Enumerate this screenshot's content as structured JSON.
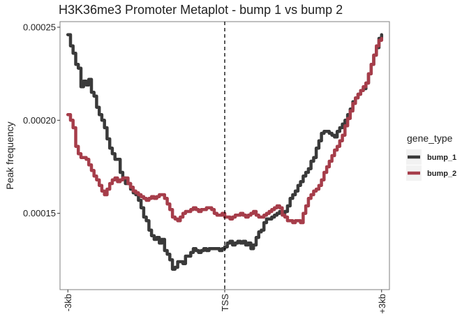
{
  "chart_data": {
    "type": "line",
    "title": "H3K36me3 Promoter Metaplot - bump 1 vs bump 2",
    "xlabel": "",
    "ylabel": "Peak frequency",
    "x_ticks": [
      {
        "x": -3000,
        "label": "-3kb"
      },
      {
        "x": 0,
        "label": "TSS"
      },
      {
        "x": 3000,
        "label": "+3kb"
      }
    ],
    "y_ticks": [
      {
        "y": 0.00015,
        "label": "0.00015"
      },
      {
        "y": 0.0002,
        "label": "0.00020"
      },
      {
        "y": 0.00025,
        "label": "0.00025"
      }
    ],
    "xlim": [
      -3150,
      3150
    ],
    "ylim": [
      0.000109,
      0.000253
    ],
    "vline": {
      "x": 0,
      "style": "dashed"
    },
    "grid": false,
    "legend": {
      "title": "gene_type",
      "position": "right"
    },
    "series": [
      {
        "name": "bump_1",
        "color": "#3a3a3a",
        "x": [
          -3000,
          -2950,
          -2900,
          -2850,
          -2800,
          -2750,
          -2700,
          -2650,
          -2600,
          -2550,
          -2500,
          -2450,
          -2400,
          -2350,
          -2300,
          -2250,
          -2200,
          -2150,
          -2100,
          -2050,
          -2000,
          -1950,
          -1900,
          -1850,
          -1800,
          -1750,
          -1700,
          -1650,
          -1600,
          -1550,
          -1500,
          -1450,
          -1400,
          -1350,
          -1300,
          -1250,
          -1200,
          -1150,
          -1100,
          -1050,
          -1000,
          -950,
          -900,
          -850,
          -800,
          -750,
          -700,
          -650,
          -600,
          -550,
          -500,
          -450,
          -400,
          -350,
          -300,
          -250,
          -200,
          -150,
          -100,
          -50,
          0,
          50,
          100,
          150,
          200,
          250,
          300,
          350,
          400,
          450,
          500,
          550,
          600,
          650,
          700,
          750,
          800,
          850,
          900,
          950,
          1000,
          1050,
          1100,
          1150,
          1200,
          1250,
          1300,
          1350,
          1400,
          1450,
          1500,
          1550,
          1600,
          1650,
          1700,
          1750,
          1800,
          1850,
          1900,
          1950,
          2000,
          2050,
          2100,
          2150,
          2200,
          2250,
          2300,
          2350,
          2400,
          2450,
          2500,
          2550,
          2600,
          2650,
          2700,
          2750,
          2800,
          2850,
          2900,
          2950,
          3000
        ],
        "values": [
          0.000246,
          0.00024,
          0.000236,
          0.00023,
          0.000228,
          0.000218,
          0.000221,
          0.000219,
          0.000222,
          0.000215,
          0.000213,
          0.000207,
          0.000203,
          0.0002,
          0.000196,
          0.00019,
          0.000185,
          0.000182,
          0.000179,
          0.000179,
          0.000172,
          0.000169,
          0.000166,
          0.000166,
          0.000163,
          0.000161,
          0.00016,
          0.000157,
          0.000153,
          0.000148,
          0.000146,
          0.000141,
          0.000138,
          0.000136,
          0.000137,
          0.000134,
          0.000136,
          0.00013,
          0.000128,
          0.000125,
          0.00012,
          0.000121,
          0.000124,
          0.000124,
          0.000123,
          0.000127,
          0.000127,
          0.000129,
          0.000131,
          0.00013,
          0.000129,
          0.00013,
          0.000131,
          0.00013,
          0.000131,
          0.000131,
          0.000131,
          0.000131,
          0.00013,
          0.000131,
          0.000132,
          0.000134,
          0.000135,
          0.000133,
          0.000134,
          0.000135,
          0.000134,
          0.000135,
          0.000133,
          0.000134,
          0.000131,
          0.000133,
          0.000137,
          0.00014,
          0.000141,
          0.000145,
          0.000147,
          0.000147,
          0.000148,
          0.000149,
          0.00015,
          0.000151,
          0.00015,
          0.000151,
          0.000154,
          0.000158,
          0.00016,
          0.000162,
          0.000165,
          0.000167,
          0.00017,
          0.000172,
          0.000174,
          0.000178,
          0.00018,
          0.000185,
          0.000189,
          0.000193,
          0.000194,
          0.000194,
          0.000193,
          0.000192,
          0.000191,
          0.000194,
          0.000196,
          0.000198,
          0.0002,
          0.000203,
          0.000206,
          0.00021,
          0.000212,
          0.000214,
          0.000216,
          0.000217,
          0.00022,
          0.000225,
          0.00023,
          0.000235,
          0.000239,
          0.000244,
          0.000246
        ]
      },
      {
        "name": "bump_2",
        "color": "#a63d4a",
        "x": [
          -3000,
          -2950,
          -2900,
          -2850,
          -2800,
          -2750,
          -2700,
          -2650,
          -2600,
          -2550,
          -2500,
          -2450,
          -2400,
          -2350,
          -2300,
          -2250,
          -2200,
          -2150,
          -2100,
          -2050,
          -2000,
          -1950,
          -1900,
          -1850,
          -1800,
          -1750,
          -1700,
          -1650,
          -1600,
          -1550,
          -1500,
          -1450,
          -1400,
          -1350,
          -1300,
          -1250,
          -1200,
          -1150,
          -1100,
          -1050,
          -1000,
          -950,
          -900,
          -850,
          -800,
          -750,
          -700,
          -650,
          -600,
          -550,
          -500,
          -450,
          -400,
          -350,
          -300,
          -250,
          -200,
          -150,
          -100,
          -50,
          0,
          50,
          100,
          150,
          200,
          250,
          300,
          350,
          400,
          450,
          500,
          550,
          600,
          650,
          700,
          750,
          800,
          850,
          900,
          950,
          1000,
          1050,
          1100,
          1150,
          1200,
          1250,
          1300,
          1350,
          1400,
          1450,
          1500,
          1550,
          1600,
          1650,
          1700,
          1750,
          1800,
          1850,
          1900,
          1950,
          2000,
          2050,
          2100,
          2150,
          2200,
          2250,
          2300,
          2350,
          2400,
          2450,
          2500,
          2550,
          2600,
          2650,
          2700,
          2750,
          2800,
          2850,
          2900,
          2950,
          3000
        ],
        "values": [
          0.000203,
          0.0002,
          0.000196,
          0.000186,
          0.000182,
          0.00018,
          0.00018,
          0.000179,
          0.000176,
          0.000173,
          0.00017,
          0.000168,
          0.000165,
          0.000162,
          0.00016,
          0.000163,
          0.000166,
          0.000168,
          0.000169,
          0.000167,
          0.000168,
          0.000169,
          0.000169,
          0.000166,
          0.000164,
          0.000162,
          0.000161,
          0.00016,
          0.000159,
          0.000158,
          0.000157,
          0.000158,
          0.000159,
          0.000158,
          0.000159,
          0.00016,
          0.00016,
          0.000158,
          0.000155,
          0.000152,
          0.000148,
          0.000147,
          0.000146,
          0.000148,
          0.00015,
          0.000151,
          0.000151,
          0.000152,
          0.000153,
          0.000152,
          0.000151,
          0.000152,
          0.000152,
          0.000153,
          0.000153,
          0.000152,
          0.00015,
          0.000149,
          0.000149,
          0.00015,
          0.000148,
          0.000148,
          0.000147,
          0.000148,
          0.000149,
          0.000149,
          0.00015,
          0.000149,
          0.000148,
          0.000149,
          0.00015,
          0.000151,
          0.000149,
          0.000148,
          0.000148,
          0.000149,
          0.00015,
          0.000151,
          0.000152,
          0.000153,
          0.000154,
          0.000153,
          0.000149,
          0.000148,
          0.000146,
          0.000146,
          0.000145,
          0.000146,
          0.000146,
          0.000145,
          0.00015,
          0.000154,
          0.000158,
          0.00016,
          0.000162,
          0.000163,
          0.000165,
          0.000168,
          0.000172,
          0.000175,
          0.000178,
          0.000181,
          0.000184,
          0.000186,
          0.000189,
          0.000192,
          0.000197,
          0.000201,
          0.000205,
          0.000209,
          0.000212,
          0.000214,
          0.000216,
          0.000218,
          0.00022,
          0.000225,
          0.00023,
          0.000235,
          0.00024,
          0.000243,
          0.000244
        ]
      }
    ]
  }
}
